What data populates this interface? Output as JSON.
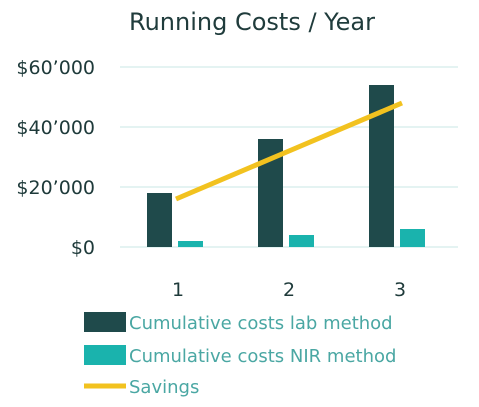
{
  "chart_data": {
    "type": "bar",
    "title": "Running Costs / Year",
    "categories": [
      "1",
      "2",
      "3"
    ],
    "ylim": [
      0,
      60000
    ],
    "yticks": [
      0,
      20000,
      40000,
      60000
    ],
    "ytick_labels": [
      "$0",
      "$20’000",
      "$40’000",
      "$60’000"
    ],
    "grid": true,
    "legend_position": "bottom-left",
    "series": [
      {
        "name": "Cumulative costs lab method",
        "kind": "bar",
        "color": "#1f4a4b",
        "values": [
          18000,
          36000,
          54000
        ]
      },
      {
        "name": "Cumulative costs NIR method",
        "kind": "bar",
        "color": "#1ab3ad",
        "values": [
          2000,
          4000,
          6000
        ]
      },
      {
        "name": "Savings",
        "kind": "line",
        "color": "#f2c21f",
        "values": [
          16000,
          32000,
          48000
        ]
      }
    ]
  }
}
